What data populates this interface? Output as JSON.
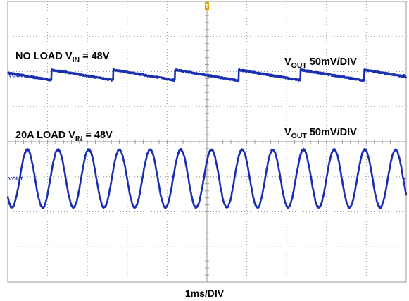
{
  "chart_data": {
    "type": "line",
    "xlabel": "1ms/DIV",
    "x_unit_per_div": "1ms",
    "divisions_x": 10,
    "divisions_y": 8,
    "grid": true,
    "trigger_marker_label": "T",
    "trace_color": "#1a2fb0",
    "grid_color": "#9a9a9a",
    "trigger_color": "#e0a000",
    "series": [
      {
        "annotation": {
          "main": "NO LOAD V",
          "sub": "IN",
          "tail": " = 48V"
        },
        "scale": {
          "main": "V",
          "sub": "OUT",
          "tail": " 50mV/DIV"
        },
        "ground_label": "VOUT",
        "shape": "sawtooth",
        "period_div": 1.55,
        "jump_times_div": [
          1.1,
          2.65,
          4.2,
          5.8,
          7.35,
          8.95
        ],
        "peak_to_peak_div": 0.3,
        "offset_div": 2.1
      },
      {
        "annotation": {
          "main": "20A LOAD V",
          "sub": "IN",
          "tail": " = 48V"
        },
        "scale": {
          "main": "V",
          "sub": "OUT",
          "tail": " 50mV/DIV"
        },
        "ground_label": "VOUT",
        "shape": "sine",
        "period_div": 0.77,
        "peak_to_peak_div": 1.65,
        "offset_div": 5.05
      }
    ]
  }
}
